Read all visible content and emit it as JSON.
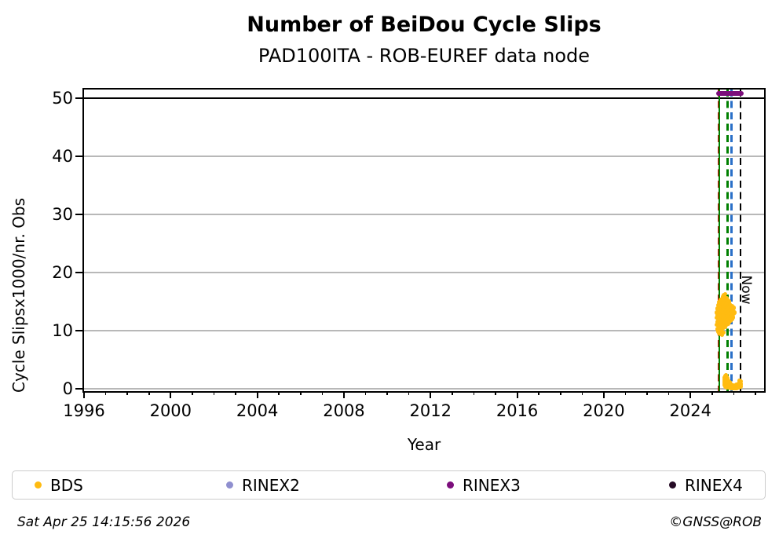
{
  "figure": {
    "footer_left": "Sat Apr 25 14:15:56 2026",
    "footer_right": "©GNSS@ROB"
  },
  "chart_data": {
    "type": "scatter",
    "title": "Number of BeiDou Cycle Slips",
    "subtitle": "PAD100ITA - ROB-EUREF data node",
    "xlabel": "Year",
    "ylabel": "Cycle Slipsx1000/nr. Obs",
    "xlim": [
      1996,
      2027.4
    ],
    "ylim": [
      -0.4,
      51.5
    ],
    "xticks_major": [
      1996,
      2000,
      2004,
      2008,
      2012,
      2016,
      2020,
      2024
    ],
    "xticks_minor": {
      "start": 1996,
      "end": 2027,
      "step": 1
    },
    "yticks": [
      0,
      10,
      20,
      30,
      40,
      50
    ],
    "grid": "horizontal",
    "grid_color": "#b8b8b8",
    "hlines": [
      {
        "y": 50,
        "color": "#000000"
      }
    ],
    "vlines": [
      {
        "x": 2025.29,
        "color": "#cc0000",
        "style": "dashed",
        "name": "event-line-red"
      },
      {
        "x": 2025.34,
        "color": "#008000",
        "style": "solid",
        "name": "event-line-green-solid"
      },
      {
        "x": 2025.71,
        "color": "#008000",
        "style": "dashed",
        "name": "event-line-green-dashed"
      },
      {
        "x": 2025.89,
        "color": "#2a70c8",
        "style": "dashed",
        "name": "event-line-blue-dashed"
      },
      {
        "x": 2026.32,
        "color": "#000000",
        "style": "dashed",
        "name": "now-line"
      }
    ],
    "now_label": {
      "text": "Now",
      "x": 2026.55,
      "y": 17
    },
    "legend_position": "bottom",
    "series": [
      {
        "name": "BDS",
        "color": "#ffbb11",
        "marker": "dot",
        "points": [
          [
            2025.22,
            11.0
          ],
          [
            2025.22,
            12.2
          ],
          [
            2025.22,
            13.1
          ],
          [
            2025.25,
            10.3
          ],
          [
            2025.25,
            11.5
          ],
          [
            2025.25,
            12.7
          ],
          [
            2025.25,
            13.8
          ],
          [
            2025.28,
            9.8
          ],
          [
            2025.28,
            10.9
          ],
          [
            2025.28,
            12.0
          ],
          [
            2025.28,
            13.3
          ],
          [
            2025.28,
            14.4
          ],
          [
            2025.31,
            10.5
          ],
          [
            2025.31,
            11.7
          ],
          [
            2025.31,
            12.9
          ],
          [
            2025.31,
            14.0
          ],
          [
            2025.31,
            14.9
          ],
          [
            2025.34,
            9.6
          ],
          [
            2025.34,
            10.8
          ],
          [
            2025.34,
            12.3
          ],
          [
            2025.34,
            13.5
          ],
          [
            2025.34,
            14.6
          ],
          [
            2025.37,
            10.1
          ],
          [
            2025.37,
            11.2
          ],
          [
            2025.37,
            12.6
          ],
          [
            2025.37,
            13.9
          ],
          [
            2025.37,
            15.0
          ],
          [
            2025.4,
            9.4
          ],
          [
            2025.4,
            10.6
          ],
          [
            2025.4,
            11.9
          ],
          [
            2025.4,
            13.2
          ],
          [
            2025.4,
            14.3
          ],
          [
            2025.4,
            15.3
          ],
          [
            2025.43,
            10.0
          ],
          [
            2025.43,
            11.4
          ],
          [
            2025.43,
            12.5
          ],
          [
            2025.43,
            13.7
          ],
          [
            2025.43,
            14.8
          ],
          [
            2025.46,
            9.3
          ],
          [
            2025.46,
            10.7
          ],
          [
            2025.46,
            12.1
          ],
          [
            2025.46,
            13.4
          ],
          [
            2025.46,
            14.5
          ],
          [
            2025.46,
            15.5
          ],
          [
            2025.49,
            10.4
          ],
          [
            2025.49,
            11.8
          ],
          [
            2025.49,
            12.8
          ],
          [
            2025.49,
            14.1
          ],
          [
            2025.49,
            15.1
          ],
          [
            2025.52,
            9.7
          ],
          [
            2025.52,
            11.1
          ],
          [
            2025.52,
            12.4
          ],
          [
            2025.52,
            13.6
          ],
          [
            2025.52,
            14.7
          ],
          [
            2025.52,
            15.8
          ],
          [
            2025.55,
            10.9
          ],
          [
            2025.55,
            12.2
          ],
          [
            2025.55,
            13.3
          ],
          [
            2025.55,
            14.4
          ],
          [
            2025.55,
            15.4
          ],
          [
            2025.55,
            16.1
          ],
          [
            2025.58,
            11.3
          ],
          [
            2025.58,
            12.7
          ],
          [
            2025.58,
            13.8
          ],
          [
            2025.58,
            14.9
          ],
          [
            2025.58,
            15.9
          ],
          [
            2025.61,
            10.6
          ],
          [
            2025.61,
            12.0
          ],
          [
            2025.61,
            13.1
          ],
          [
            2025.61,
            14.2
          ],
          [
            2025.61,
            15.2
          ],
          [
            2025.61,
            16.3
          ],
          [
            2025.64,
            11.5
          ],
          [
            2025.64,
            12.9
          ],
          [
            2025.64,
            14.0
          ],
          [
            2025.64,
            15.0
          ],
          [
            2025.67,
            11.0
          ],
          [
            2025.67,
            12.3
          ],
          [
            2025.67,
            13.5
          ],
          [
            2025.67,
            14.6
          ],
          [
            2025.67,
            15.6
          ],
          [
            2025.7,
            11.8
          ],
          [
            2025.7,
            13.0
          ],
          [
            2025.7,
            14.1
          ],
          [
            2025.7,
            15.3
          ],
          [
            2025.73,
            11.2
          ],
          [
            2025.73,
            12.5
          ],
          [
            2025.73,
            13.7
          ],
          [
            2025.73,
            14.8
          ],
          [
            2025.76,
            11.9
          ],
          [
            2025.76,
            13.2
          ],
          [
            2025.76,
            14.3
          ],
          [
            2025.79,
            11.4
          ],
          [
            2025.79,
            12.8
          ],
          [
            2025.79,
            13.9
          ],
          [
            2025.79,
            15.0
          ],
          [
            2025.82,
            12.1
          ],
          [
            2025.82,
            13.4
          ],
          [
            2025.82,
            14.5
          ],
          [
            2025.85,
            11.7
          ],
          [
            2025.85,
            13.0
          ],
          [
            2025.85,
            14.1
          ],
          [
            2025.88,
            12.4
          ],
          [
            2025.88,
            13.6
          ],
          [
            2025.91,
            12.0
          ],
          [
            2025.91,
            13.2
          ],
          [
            2025.91,
            14.2
          ],
          [
            2025.94,
            12.7
          ],
          [
            2025.94,
            13.8
          ],
          [
            2025.97,
            12.3
          ],
          [
            2025.97,
            13.4
          ],
          [
            2026.0,
            12.9
          ],
          [
            2026.0,
            13.9
          ],
          [
            2026.03,
            13.1
          ],
          [
            2025.56,
            1.0
          ],
          [
            2025.56,
            1.6
          ],
          [
            2025.59,
            0.7
          ],
          [
            2025.59,
            1.3
          ],
          [
            2025.59,
            1.9
          ],
          [
            2025.62,
            0.4
          ],
          [
            2025.62,
            1.1
          ],
          [
            2025.62,
            1.7
          ],
          [
            2025.62,
            2.2
          ],
          [
            2025.65,
            0.6
          ],
          [
            2025.65,
            1.4
          ],
          [
            2025.65,
            2.0
          ],
          [
            2025.65,
            2.4
          ],
          [
            2025.68,
            0.3
          ],
          [
            2025.68,
            0.9
          ],
          [
            2025.68,
            1.6
          ],
          [
            2025.68,
            2.1
          ],
          [
            2025.71,
            0.5
          ],
          [
            2025.71,
            1.2
          ],
          [
            2025.71,
            1.8
          ],
          [
            2025.74,
            0.2
          ],
          [
            2025.74,
            0.8
          ],
          [
            2025.74,
            1.4
          ],
          [
            2025.77,
            0.4
          ],
          [
            2025.77,
            1.0
          ],
          [
            2025.8,
            0.2
          ],
          [
            2025.8,
            0.6
          ],
          [
            2025.8,
            1.1
          ],
          [
            2025.83,
            0.3
          ],
          [
            2025.83,
            0.8
          ],
          [
            2025.86,
            0.1
          ],
          [
            2025.86,
            0.5
          ],
          [
            2025.89,
            0.3
          ],
          [
            2025.89,
            0.7
          ],
          [
            2025.92,
            0.1
          ],
          [
            2025.92,
            0.4
          ],
          [
            2025.95,
            0.2
          ],
          [
            2025.95,
            0.6
          ],
          [
            2025.98,
            0.1
          ],
          [
            2025.98,
            0.4
          ],
          [
            2026.01,
            0.2
          ],
          [
            2026.01,
            0.5
          ],
          [
            2026.04,
            0.1
          ],
          [
            2026.04,
            0.3
          ],
          [
            2026.07,
            0.2
          ],
          [
            2026.07,
            0.6
          ],
          [
            2026.1,
            0.1
          ],
          [
            2026.1,
            0.4
          ],
          [
            2026.13,
            0.3
          ],
          [
            2026.13,
            0.7
          ],
          [
            2026.16,
            0.1
          ],
          [
            2026.16,
            0.5
          ],
          [
            2026.19,
            0.2
          ],
          [
            2026.19,
            0.6
          ],
          [
            2026.22,
            0.4
          ],
          [
            2026.22,
            0.9
          ],
          [
            2026.25,
            0.3
          ],
          [
            2026.25,
            0.7
          ],
          [
            2026.25,
            1.1
          ],
          [
            2026.28,
            0.5
          ],
          [
            2026.28,
            1.0
          ],
          [
            2026.28,
            1.4
          ],
          [
            2026.31,
            0.4
          ],
          [
            2026.31,
            0.8
          ],
          [
            2026.31,
            1.3
          ]
        ]
      },
      {
        "name": "RINEX2",
        "color": "#8f8fcf",
        "marker": "dot",
        "points": []
      },
      {
        "name": "RINEX3",
        "color": "#7c0e7c",
        "marker": "dot",
        "points": [],
        "segment": {
          "x0": 2025.3,
          "x1": 2026.33,
          "y": 50.85
        }
      },
      {
        "name": "RINEX4",
        "color": "#260b26",
        "marker": "dot",
        "points": []
      }
    ]
  }
}
